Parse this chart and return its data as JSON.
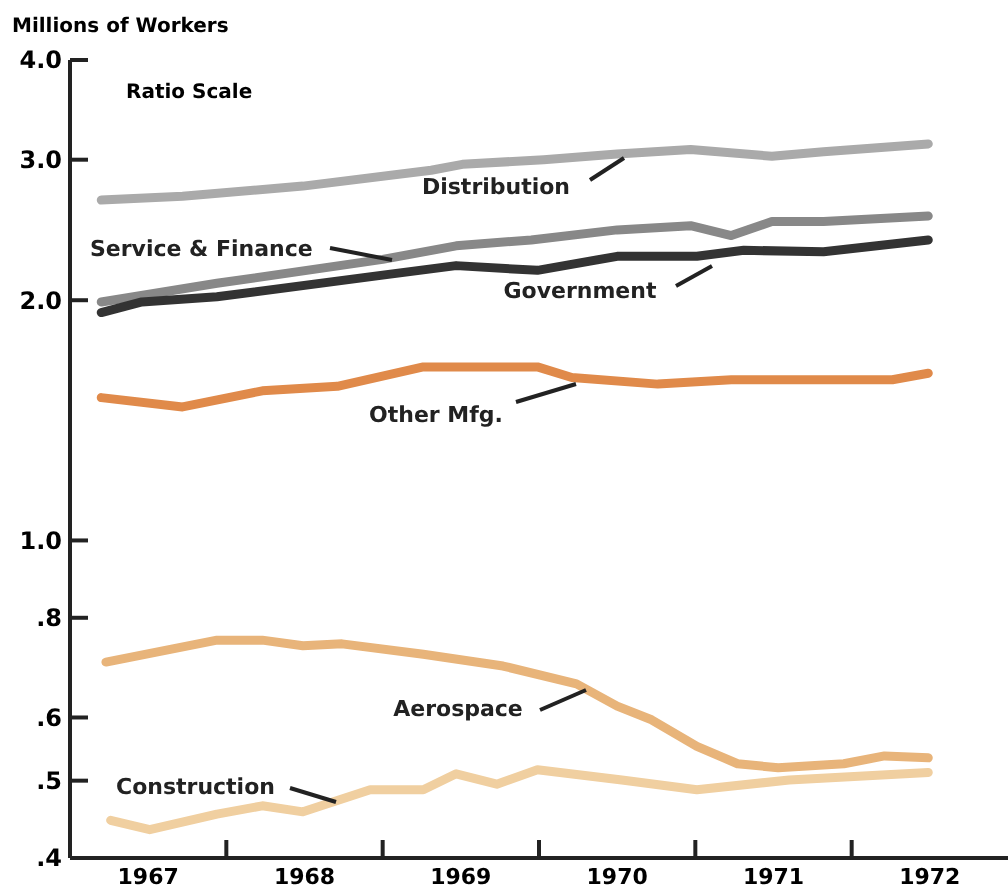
{
  "chart_data": {
    "type": "line",
    "ylabel": "Millions of Workers",
    "annotations": [
      "Ratio Scale"
    ],
    "log": true,
    "grid": false,
    "legend": false,
    "line_style": "solid",
    "xlim": [
      1967,
      1973
    ],
    "xticks": [
      {
        "value": 1967.5,
        "label": "1967"
      },
      {
        "value": 1968,
        "label": null
      },
      {
        "value": 1968.5,
        "label": "1968"
      },
      {
        "value": 1969,
        "label": null
      },
      {
        "value": 1969.5,
        "label": "1969"
      },
      {
        "value": 1970,
        "label": null
      },
      {
        "value": 1970.5,
        "label": "1970"
      },
      {
        "value": 1971,
        "label": null
      },
      {
        "value": 1971.5,
        "label": "1971"
      },
      {
        "value": 1972,
        "label": null
      },
      {
        "value": 1972.5,
        "label": "1972"
      }
    ],
    "ylim": [
      0.4,
      4.0
    ],
    "yticks": [
      {
        "value": 0.4,
        "label": ".4"
      },
      {
        "value": 0.5,
        "label": ".5"
      },
      {
        "value": 0.6,
        "label": ".6"
      },
      {
        "value": 0.8,
        "label": ".8"
      },
      {
        "value": 1.0,
        "label": "1.0"
      },
      {
        "value": 2.0,
        "label": "2.0"
      },
      {
        "value": 3.0,
        "label": "3.0"
      },
      {
        "value": 4.0,
        "label": "4.0"
      }
    ],
    "series": [
      {
        "name": "Distribution",
        "color": "#aaaaaa",
        "x": [
          1967.2,
          1967.72,
          1968.49,
          1969.31,
          1969.51,
          1970.03,
          1970.5,
          1970.97,
          1971.49,
          1971.82,
          1972.49
        ],
        "values": [
          2.67,
          2.7,
          2.78,
          2.91,
          2.96,
          3.0,
          3.05,
          3.09,
          3.03,
          3.07,
          3.14
        ]
      },
      {
        "name": "Service & Finance",
        "color": "#888888",
        "x": [
          1967.2,
          1967.94,
          1969.0,
          1969.47,
          1969.95,
          1970.5,
          1970.97,
          1971.23,
          1971.49,
          1971.82,
          1972.49
        ],
        "values": [
          1.99,
          2.1,
          2.25,
          2.34,
          2.38,
          2.45,
          2.48,
          2.41,
          2.51,
          2.51,
          2.55
        ]
      },
      {
        "name": "Government",
        "color": "#333333",
        "x": [
          1967.2,
          1967.46,
          1967.94,
          1969.0,
          1969.47,
          1969.99,
          1970.5,
          1971.01,
          1971.31,
          1971.82,
          1972.49
        ],
        "values": [
          1.93,
          1.99,
          2.02,
          2.15,
          2.21,
          2.18,
          2.27,
          2.27,
          2.31,
          2.3,
          2.38
        ]
      },
      {
        "name": "Other Mfg.",
        "color": "#e08a4a",
        "x": [
          1967.2,
          1967.72,
          1968.23,
          1968.71,
          1969.26,
          1969.99,
          1970.21,
          1970.76,
          1971.23,
          1972.26,
          1972.49
        ],
        "values": [
          1.51,
          1.47,
          1.54,
          1.56,
          1.65,
          1.65,
          1.6,
          1.57,
          1.59,
          1.59,
          1.62
        ]
      },
      {
        "name": "Aerospace",
        "color": "#e8b47a",
        "x": [
          1967.23,
          1967.94,
          1968.23,
          1968.49,
          1968.74,
          1969.26,
          1969.77,
          1970.24,
          1970.5,
          1970.72,
          1971.01,
          1971.27,
          1971.53,
          1971.95,
          1972.21,
          1972.49
        ],
        "values": [
          0.704,
          0.75,
          0.75,
          0.738,
          0.742,
          0.72,
          0.696,
          0.661,
          0.62,
          0.596,
          0.552,
          0.525,
          0.519,
          0.525,
          0.537,
          0.534
        ]
      },
      {
        "name": "Construction",
        "color": "#f0cfa0",
        "x": [
          1967.26,
          1967.51,
          1967.94,
          1968.23,
          1968.49,
          1968.92,
          1969.26,
          1969.47,
          1969.73,
          1969.99,
          1970.53,
          1971.01,
          1971.6,
          1972.49
        ],
        "values": [
          0.446,
          0.434,
          0.454,
          0.465,
          0.457,
          0.487,
          0.487,
          0.51,
          0.495,
          0.516,
          0.501,
          0.487,
          0.501,
          0.512
        ]
      }
    ]
  }
}
